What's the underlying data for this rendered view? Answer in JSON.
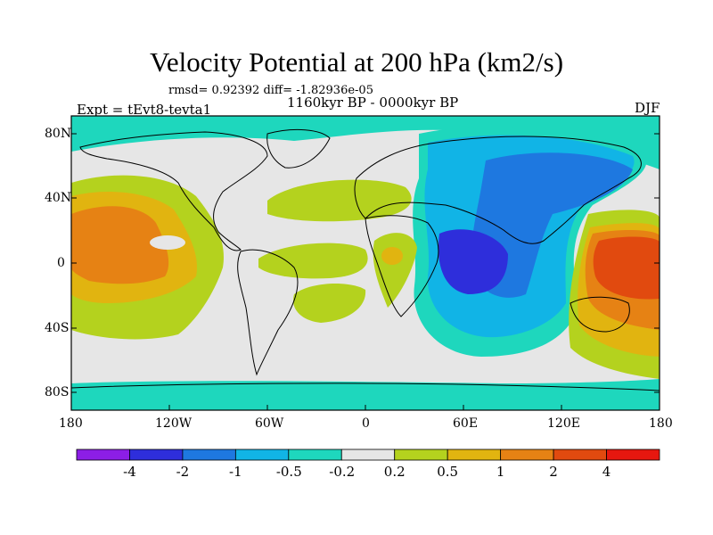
{
  "title": "Velocity Potential at 200 hPa (km2/s)",
  "stats": "rmsd= 0.92392 diff= -1.82936e-05",
  "left_label": "Expt = tEvt8-tevta1",
  "center_label": "1160kyr BP - 0000kyr BP",
  "right_label": "DJF",
  "lat_ticks": [
    "80N",
    "40N",
    "0",
    "40S",
    "80S"
  ],
  "lon_ticks": [
    "180",
    "120W",
    "60W",
    "0",
    "60E",
    "120E",
    "180"
  ],
  "colorbar": {
    "colors": [
      "#8c1ee6",
      "#2e2edb",
      "#1e78e0",
      "#11b4e6",
      "#1ed7bd",
      "#e6e6e6",
      "#b4d21e",
      "#e1b410",
      "#e68214",
      "#e14a0f",
      "#e6170f"
    ],
    "labels": [
      "-4",
      "-2",
      "-1",
      "-0.5",
      "-0.2",
      "0.2",
      "0.5",
      "1",
      "2",
      "4"
    ]
  },
  "map_layers": [
    {
      "level": "-0.2 to 0.2",
      "color": "#e6e6e6"
    },
    {
      "level": "-0.5 to -0.2",
      "color": "#1ed7bd"
    },
    {
      "level": "-1 to -0.5",
      "color": "#11b4e6"
    },
    {
      "level": "-2 to -1",
      "color": "#1e78e0"
    },
    {
      "level": "-4 to -2",
      "color": "#2e2edb"
    },
    {
      "level": "0.2 to 0.5",
      "color": "#b4d21e"
    },
    {
      "level": "0.5 to 1",
      "color": "#e1b410"
    },
    {
      "level": "1 to 2",
      "color": "#e68214"
    },
    {
      "level": "2 to 4",
      "color": "#e14a0f"
    }
  ]
}
